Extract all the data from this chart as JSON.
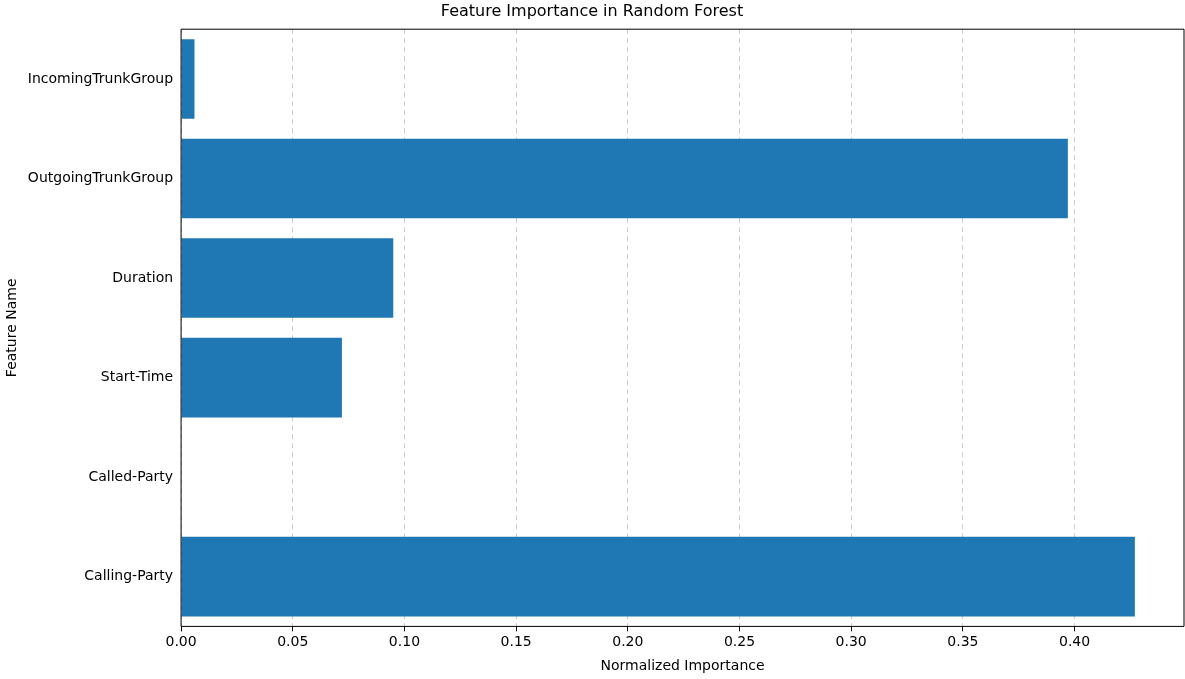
{
  "chart_data": {
    "type": "bar",
    "orientation": "horizontal",
    "title": "Feature Importance in Random Forest",
    "xlabel": "Normalized Importance",
    "ylabel": "Feature Name",
    "categories": [
      "IncomingTrunkGroup",
      "OutgoingTrunkGroup",
      "Duration",
      "Start-Time",
      "Called-Party",
      "Calling-Party"
    ],
    "values": [
      0.006,
      0.397,
      0.095,
      0.072,
      0,
      0.427
    ],
    "color": "#1f77b4",
    "xlim": [
      0,
      0.449
    ],
    "xticks": [
      {
        "value": 0,
        "label": "0.00"
      },
      {
        "value": 0.05,
        "label": "0.05"
      },
      {
        "value": 0.1,
        "label": "0.10"
      },
      {
        "value": 0.15,
        "label": "0.15"
      },
      {
        "value": 0.2,
        "label": "0.20"
      },
      {
        "value": 0.25,
        "label": "0.25"
      },
      {
        "value": 0.3,
        "label": "0.30"
      },
      {
        "value": 0.35,
        "label": "0.35"
      },
      {
        "value": 0.4,
        "label": "0.40"
      }
    ],
    "grid": "x",
    "line_style": "dashed",
    "legend": false
  }
}
